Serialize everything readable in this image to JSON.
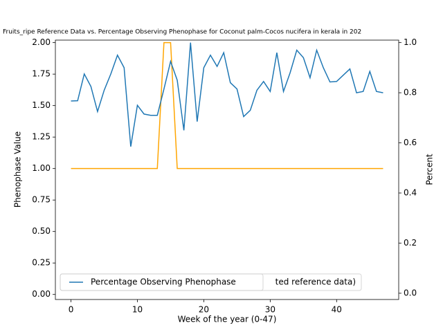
{
  "chart_data": {
    "type": "line",
    "title": "Fruits_ripe Reference Data vs. Percentage Observing Phenophase for Coconut palm-Cocos nucifera in kerala in 202",
    "xlabel": "Week of the year (0-47)",
    "ylabel": "Phenophase Value",
    "y2label": "Percent",
    "x": [
      0,
      1,
      2,
      3,
      4,
      5,
      6,
      7,
      8,
      9,
      10,
      11,
      12,
      13,
      14,
      15,
      16,
      17,
      18,
      19,
      20,
      21,
      22,
      23,
      24,
      25,
      26,
      27,
      28,
      29,
      30,
      31,
      32,
      33,
      34,
      35,
      36,
      37,
      38,
      39,
      40,
      41,
      42,
      43,
      44,
      45,
      46,
      47
    ],
    "series": [
      {
        "color": "#ffa500",
        "axis": "y",
        "values": [
          1,
          1,
          1,
          1,
          1,
          1,
          1,
          1,
          1,
          1,
          1,
          1,
          1,
          1,
          2,
          2,
          1,
          1,
          1,
          1,
          1,
          1,
          1,
          1,
          1,
          1,
          1,
          1,
          1,
          1,
          1,
          1,
          1,
          1,
          1,
          1,
          1,
          1,
          1,
          1,
          1,
          1,
          1,
          1,
          1,
          1,
          1,
          1
        ]
      },
      {
        "name": "Percentage Observing Phenophase",
        "color": "#1f77b4",
        "axis": "y2",
        "values": [
          0.767,
          0.768,
          0.875,
          0.825,
          0.725,
          0.81,
          0.875,
          0.95,
          0.9,
          0.585,
          0.75,
          0.715,
          0.71,
          0.71,
          0.815,
          0.925,
          0.85,
          0.65,
          1.0,
          0.685,
          0.9,
          0.95,
          0.905,
          0.96,
          0.84,
          0.815,
          0.705,
          0.73,
          0.81,
          0.845,
          0.805,
          0.96,
          0.805,
          0.88,
          0.97,
          0.94,
          0.86,
          0.97,
          0.9,
          0.843,
          0.845,
          0.87,
          0.895,
          0.8,
          0.805,
          0.885,
          0.805,
          0.8
        ]
      }
    ],
    "hidden_legend_text": "ted reference data)",
    "xlim": [
      -2.35,
      49.35
    ],
    "xticks": [
      0,
      10,
      20,
      30,
      40
    ],
    "ylim": [
      -0.04,
      2.02
    ],
    "yticks": [
      {
        "value": 0,
        "label": "0.00"
      },
      {
        "value": 0.25,
        "label": "0.25"
      },
      {
        "value": 0.5,
        "label": "0.50"
      },
      {
        "value": 0.75,
        "label": "0.75"
      },
      {
        "value": 1,
        "label": "1.00"
      },
      {
        "value": 1.25,
        "label": "1.25"
      },
      {
        "value": 1.5,
        "label": "1.50"
      },
      {
        "value": 1.75,
        "label": "1.75"
      },
      {
        "value": 2,
        "label": "2.00"
      }
    ],
    "y2lim": [
      -0.025,
      1.01
    ],
    "y2ticks": [
      {
        "value": 0,
        "label": "0.0"
      },
      {
        "value": 0.2,
        "label": "0.2"
      },
      {
        "value": 0.4,
        "label": "0.4"
      },
      {
        "value": 0.6,
        "label": "0.6"
      },
      {
        "value": 0.8,
        "label": "0.8"
      },
      {
        "value": 1,
        "label": "1.0"
      }
    ],
    "legend": "lower left"
  }
}
